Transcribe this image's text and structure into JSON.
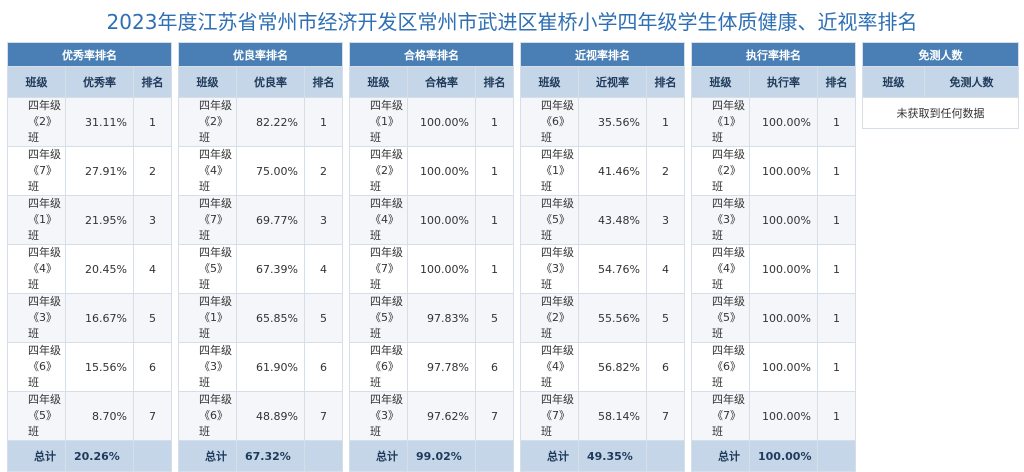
{
  "title": "2023年度江苏省常州市经济开发区常州市武进区崔桥小学四年级学生体质健康、近视率排名",
  "col_headers": {
    "class": "班级",
    "rank": "排名",
    "total_label": "总计"
  },
  "tables": [
    {
      "title": "优秀率排名",
      "metric": "优秀率",
      "rows": [
        {
          "grade": "四年级",
          "cls": "《2》班",
          "value": "31.11%",
          "rank": "1"
        },
        {
          "grade": "四年级",
          "cls": "《7》班",
          "value": "27.91%",
          "rank": "2"
        },
        {
          "grade": "四年级",
          "cls": "《1》班",
          "value": "21.95%",
          "rank": "3"
        },
        {
          "grade": "四年级",
          "cls": "《4》班",
          "value": "20.45%",
          "rank": "4"
        },
        {
          "grade": "四年级",
          "cls": "《3》班",
          "value": "16.67%",
          "rank": "5"
        },
        {
          "grade": "四年级",
          "cls": "《6》班",
          "value": "15.56%",
          "rank": "6"
        },
        {
          "grade": "四年级",
          "cls": "《5》班",
          "value": "8.70%",
          "rank": "7"
        }
      ],
      "total": "20.26%"
    },
    {
      "title": "优良率排名",
      "metric": "优良率",
      "rows": [
        {
          "grade": "四年级",
          "cls": "《2》班",
          "value": "82.22%",
          "rank": "1"
        },
        {
          "grade": "四年级",
          "cls": "《4》班",
          "value": "75.00%",
          "rank": "2"
        },
        {
          "grade": "四年级",
          "cls": "《7》班",
          "value": "69.77%",
          "rank": "3"
        },
        {
          "grade": "四年级",
          "cls": "《5》班",
          "value": "67.39%",
          "rank": "4"
        },
        {
          "grade": "四年级",
          "cls": "《1》班",
          "value": "65.85%",
          "rank": "5"
        },
        {
          "grade": "四年级",
          "cls": "《3》班",
          "value": "61.90%",
          "rank": "6"
        },
        {
          "grade": "四年级",
          "cls": "《6》班",
          "value": "48.89%",
          "rank": "7"
        }
      ],
      "total": "67.32%"
    },
    {
      "title": "合格率排名",
      "metric": "合格率",
      "rows": [
        {
          "grade": "四年级",
          "cls": "《1》班",
          "value": "100.00%",
          "rank": "1"
        },
        {
          "grade": "四年级",
          "cls": "《2》班",
          "value": "100.00%",
          "rank": "1"
        },
        {
          "grade": "四年级",
          "cls": "《4》班",
          "value": "100.00%",
          "rank": "1"
        },
        {
          "grade": "四年级",
          "cls": "《7》班",
          "value": "100.00%",
          "rank": "1"
        },
        {
          "grade": "四年级",
          "cls": "《5》班",
          "value": "97.83%",
          "rank": "5"
        },
        {
          "grade": "四年级",
          "cls": "《6》班",
          "value": "97.78%",
          "rank": "6"
        },
        {
          "grade": "四年级",
          "cls": "《3》班",
          "value": "97.62%",
          "rank": "7"
        }
      ],
      "total": "99.02%"
    },
    {
      "title": "近视率排名",
      "metric": "近视率",
      "rows": [
        {
          "grade": "四年级",
          "cls": "《6》班",
          "value": "35.56%",
          "rank": "1"
        },
        {
          "grade": "四年级",
          "cls": "《1》班",
          "value": "41.46%",
          "rank": "2"
        },
        {
          "grade": "四年级",
          "cls": "《5》班",
          "value": "43.48%",
          "rank": "3"
        },
        {
          "grade": "四年级",
          "cls": "《3》班",
          "value": "54.76%",
          "rank": "4"
        },
        {
          "grade": "四年级",
          "cls": "《2》班",
          "value": "55.56%",
          "rank": "5"
        },
        {
          "grade": "四年级",
          "cls": "《4》班",
          "value": "56.82%",
          "rank": "6"
        },
        {
          "grade": "四年级",
          "cls": "《7》班",
          "value": "58.14%",
          "rank": "7"
        }
      ],
      "total": "49.35%"
    },
    {
      "title": "执行率排名",
      "metric": "执行率",
      "rows": [
        {
          "grade": "四年级",
          "cls": "《1》班",
          "value": "100.00%",
          "rank": "1"
        },
        {
          "grade": "四年级",
          "cls": "《2》班",
          "value": "100.00%",
          "rank": "1"
        },
        {
          "grade": "四年级",
          "cls": "《3》班",
          "value": "100.00%",
          "rank": "1"
        },
        {
          "grade": "四年级",
          "cls": "《4》班",
          "value": "100.00%",
          "rank": "1"
        },
        {
          "grade": "四年级",
          "cls": "《5》班",
          "value": "100.00%",
          "rank": "1"
        },
        {
          "grade": "四年级",
          "cls": "《6》班",
          "value": "100.00%",
          "rank": "1"
        },
        {
          "grade": "四年级",
          "cls": "《7》班",
          "value": "100.00%",
          "rank": "1"
        }
      ],
      "total": "100.00%"
    }
  ],
  "exempt": {
    "title": "免测人数",
    "col_class": "班级",
    "col_count": "免测人数",
    "empty_text": "未获取到任何数据"
  },
  "colors": {
    "header": "#4a7fb6",
    "subheader": "#c5d6e8",
    "title": "#2f6fb4"
  }
}
